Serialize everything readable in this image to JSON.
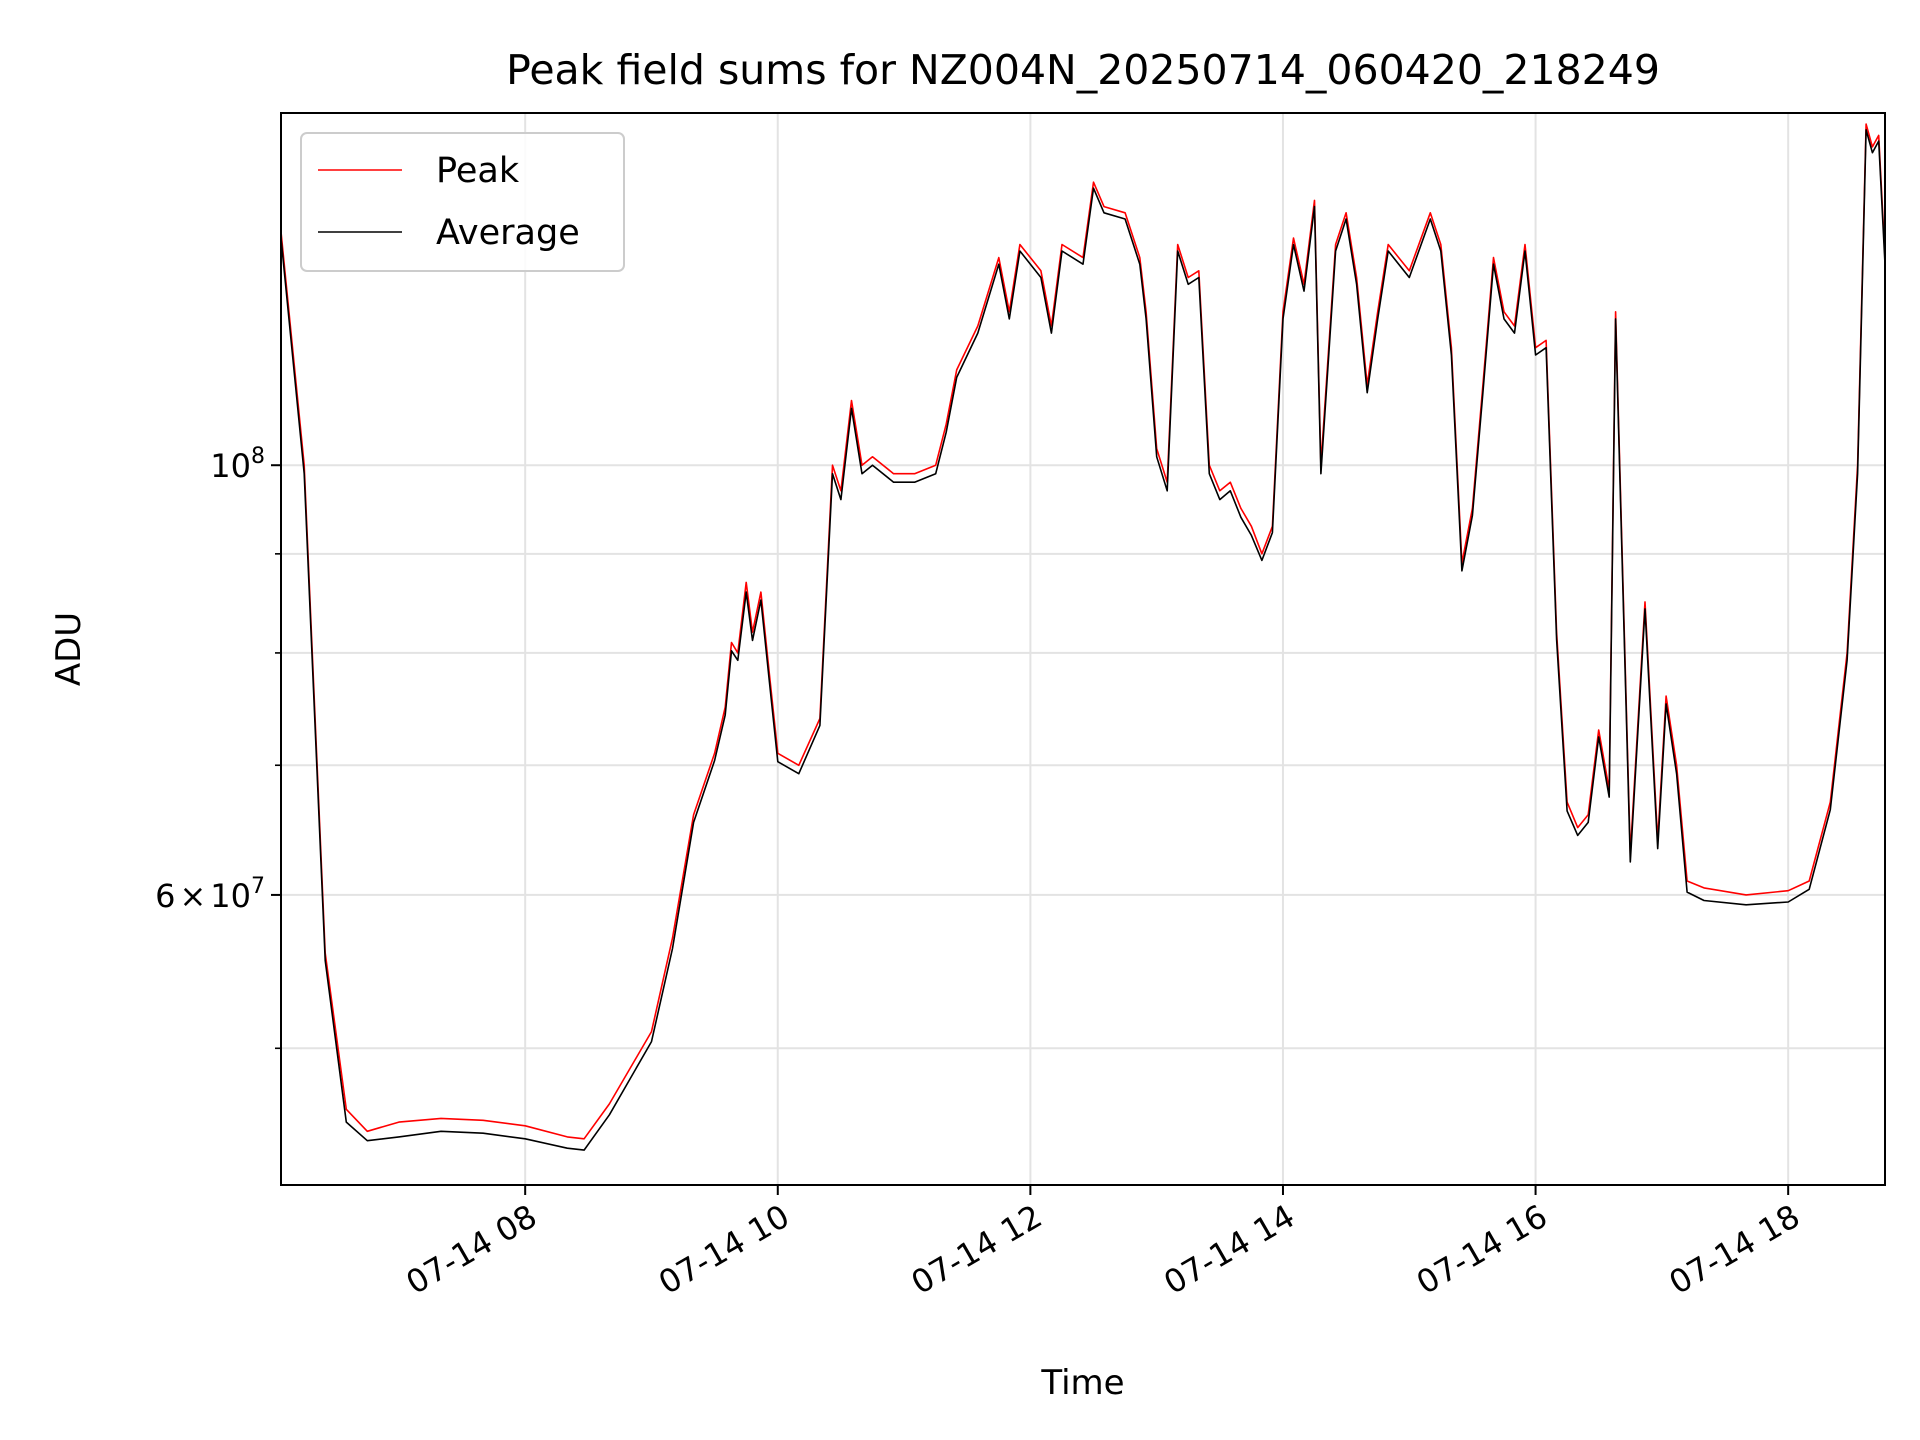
{
  "chart_data": {
    "type": "line",
    "title": "Peak field sums for NZ004N_20250714_060420_218249",
    "xlabel": "Time",
    "ylabel": "ADU",
    "y_scale": "log",
    "ylim": [
      42500000,
      152000000
    ],
    "xlim": [
      "2025-07-14 06:04",
      "2025-07-14 18:46"
    ],
    "grid": true,
    "legend": "upper left",
    "x_ticks": [
      {
        "t": "2025-07-14 08:00",
        "label": "07-14 08"
      },
      {
        "t": "2025-07-14 10:00",
        "label": "07-14 10"
      },
      {
        "t": "2025-07-14 12:00",
        "label": "07-14 12"
      },
      {
        "t": "2025-07-14 14:00",
        "label": "07-14 14"
      },
      {
        "t": "2025-07-14 16:00",
        "label": "07-14 16"
      },
      {
        "t": "2025-07-14 18:00",
        "label": "07-14 18"
      }
    ],
    "y_major_ticks": [
      {
        "value": 100000000,
        "base": "10",
        "exp": "8"
      },
      {
        "value": 60000000,
        "mantissa": "6",
        "base": "10",
        "exp": "7"
      }
    ],
    "y_minor_ticks": [
      50000000,
      70000000,
      80000000,
      90000000
    ],
    "series": [
      {
        "name": "Peak",
        "color": "#ff0000",
        "x": [
          "2025-07-14 06:04",
          "2025-07-14 06:15",
          "2025-07-14 06:25",
          "2025-07-14 06:35",
          "2025-07-14 06:45",
          "2025-07-14 07:00",
          "2025-07-14 07:20",
          "2025-07-14 07:40",
          "2025-07-14 08:00",
          "2025-07-14 08:20",
          "2025-07-14 08:28",
          "2025-07-14 08:40",
          "2025-07-14 09:00",
          "2025-07-14 09:10",
          "2025-07-14 09:20",
          "2025-07-14 09:30",
          "2025-07-14 09:35",
          "2025-07-14 09:38",
          "2025-07-14 09:41",
          "2025-07-14 09:45",
          "2025-07-14 09:48",
          "2025-07-14 09:52",
          "2025-07-14 09:56",
          "2025-07-14 10:00",
          "2025-07-14 10:10",
          "2025-07-14 10:20",
          "2025-07-14 10:26",
          "2025-07-14 10:30",
          "2025-07-14 10:35",
          "2025-07-14 10:40",
          "2025-07-14 10:45",
          "2025-07-14 10:55",
          "2025-07-14 11:05",
          "2025-07-14 11:15",
          "2025-07-14 11:20",
          "2025-07-14 11:25",
          "2025-07-14 11:35",
          "2025-07-14 11:45",
          "2025-07-14 11:50",
          "2025-07-14 11:55",
          "2025-07-14 12:05",
          "2025-07-14 12:10",
          "2025-07-14 12:15",
          "2025-07-14 12:25",
          "2025-07-14 12:30",
          "2025-07-14 12:35",
          "2025-07-14 12:45",
          "2025-07-14 12:52",
          "2025-07-14 12:55",
          "2025-07-14 13:00",
          "2025-07-14 13:05",
          "2025-07-14 13:10",
          "2025-07-14 13:15",
          "2025-07-14 13:20",
          "2025-07-14 13:25",
          "2025-07-14 13:30",
          "2025-07-14 13:35",
          "2025-07-14 13:40",
          "2025-07-14 13:45",
          "2025-07-14 13:50",
          "2025-07-14 13:55",
          "2025-07-14 14:00",
          "2025-07-14 14:05",
          "2025-07-14 14:10",
          "2025-07-14 14:15",
          "2025-07-14 14:18",
          "2025-07-14 14:25",
          "2025-07-14 14:30",
          "2025-07-14 14:35",
          "2025-07-14 14:40",
          "2025-07-14 14:45",
          "2025-07-14 14:50",
          "2025-07-14 15:00",
          "2025-07-14 15:10",
          "2025-07-14 15:15",
          "2025-07-14 15:20",
          "2025-07-14 15:25",
          "2025-07-14 15:30",
          "2025-07-14 15:35",
          "2025-07-14 15:40",
          "2025-07-14 15:45",
          "2025-07-14 15:50",
          "2025-07-14 15:55",
          "2025-07-14 16:00",
          "2025-07-14 16:05",
          "2025-07-14 16:10",
          "2025-07-14 16:15",
          "2025-07-14 16:20",
          "2025-07-14 16:25",
          "2025-07-14 16:30",
          "2025-07-14 16:35",
          "2025-07-14 16:38",
          "2025-07-14 16:45",
          "2025-07-14 16:52",
          "2025-07-14 16:58",
          "2025-07-14 17:02",
          "2025-07-14 17:07",
          "2025-07-14 17:12",
          "2025-07-14 17:20",
          "2025-07-14 17:40",
          "2025-07-14 18:00",
          "2025-07-14 18:10",
          "2025-07-14 18:20",
          "2025-07-14 18:28",
          "2025-07-14 18:33",
          "2025-07-14 18:37",
          "2025-07-14 18:40",
          "2025-07-14 18:43",
          "2025-07-14 18:46"
        ],
        "y": [
          132000000,
          100000000,
          56000000,
          46500000,
          45300000,
          45800000,
          46000000,
          45900000,
          45600000,
          45000000,
          44900000,
          46800000,
          51000000,
          57000000,
          66000000,
          71000000,
          75000000,
          81000000,
          80000000,
          87000000,
          82000000,
          86000000,
          78000000,
          71000000,
          70000000,
          74000000,
          100000000,
          97000000,
          108000000,
          100000000,
          101000000,
          99000000,
          99000000,
          100000000,
          105000000,
          112000000,
          118000000,
          128000000,
          120000000,
          130000000,
          126000000,
          118000000,
          130000000,
          128000000,
          140000000,
          136000000,
          135000000,
          128000000,
          120000000,
          102000000,
          98000000,
          130000000,
          125000000,
          126000000,
          100000000,
          97000000,
          98000000,
          95000000,
          93000000,
          90000000,
          93000000,
          120000000,
          131000000,
          124000000,
          137000000,
          100000000,
          130000000,
          135000000,
          125000000,
          110000000,
          120000000,
          130000000,
          126000000,
          135000000,
          130000000,
          115000000,
          89000000,
          95000000,
          110000000,
          128000000,
          120000000,
          118000000,
          130000000,
          115000000,
          116000000,
          82000000,
          67000000,
          65000000,
          66000000,
          73000000,
          68000000,
          120000000,
          63000000,
          85000000,
          64000000,
          76000000,
          70000000,
          61000000,
          60500000,
          60000000,
          60300000,
          61000000,
          67000000,
          80000000,
          100000000,
          150000000,
          146000000,
          148000000,
          128000000
        ]
      },
      {
        "name": "Average",
        "color": "#000000",
        "x": [
          "2025-07-14 06:04",
          "2025-07-14 06:15",
          "2025-07-14 06:25",
          "2025-07-14 06:35",
          "2025-07-14 06:45",
          "2025-07-14 07:00",
          "2025-07-14 07:20",
          "2025-07-14 07:40",
          "2025-07-14 08:00",
          "2025-07-14 08:20",
          "2025-07-14 08:28",
          "2025-07-14 08:40",
          "2025-07-14 09:00",
          "2025-07-14 09:10",
          "2025-07-14 09:20",
          "2025-07-14 09:30",
          "2025-07-14 09:35",
          "2025-07-14 09:38",
          "2025-07-14 09:41",
          "2025-07-14 09:45",
          "2025-07-14 09:48",
          "2025-07-14 09:52",
          "2025-07-14 09:56",
          "2025-07-14 10:00",
          "2025-07-14 10:10",
          "2025-07-14 10:20",
          "2025-07-14 10:26",
          "2025-07-14 10:30",
          "2025-07-14 10:35",
          "2025-07-14 10:40",
          "2025-07-14 10:45",
          "2025-07-14 10:55",
          "2025-07-14 11:05",
          "2025-07-14 11:15",
          "2025-07-14 11:20",
          "2025-07-14 11:25",
          "2025-07-14 11:35",
          "2025-07-14 11:45",
          "2025-07-14 11:50",
          "2025-07-14 11:55",
          "2025-07-14 12:05",
          "2025-07-14 12:10",
          "2025-07-14 12:15",
          "2025-07-14 12:25",
          "2025-07-14 12:30",
          "2025-07-14 12:35",
          "2025-07-14 12:45",
          "2025-07-14 12:52",
          "2025-07-14 12:55",
          "2025-07-14 13:00",
          "2025-07-14 13:05",
          "2025-07-14 13:10",
          "2025-07-14 13:15",
          "2025-07-14 13:20",
          "2025-07-14 13:25",
          "2025-07-14 13:30",
          "2025-07-14 13:35",
          "2025-07-14 13:40",
          "2025-07-14 13:45",
          "2025-07-14 13:50",
          "2025-07-14 13:55",
          "2025-07-14 14:00",
          "2025-07-14 14:05",
          "2025-07-14 14:10",
          "2025-07-14 14:15",
          "2025-07-14 14:18",
          "2025-07-14 14:25",
          "2025-07-14 14:30",
          "2025-07-14 14:35",
          "2025-07-14 14:40",
          "2025-07-14 14:45",
          "2025-07-14 14:50",
          "2025-07-14 15:00",
          "2025-07-14 15:10",
          "2025-07-14 15:15",
          "2025-07-14 15:20",
          "2025-07-14 15:25",
          "2025-07-14 15:30",
          "2025-07-14 15:35",
          "2025-07-14 15:40",
          "2025-07-14 15:45",
          "2025-07-14 15:50",
          "2025-07-14 15:55",
          "2025-07-14 16:00",
          "2025-07-14 16:05",
          "2025-07-14 16:10",
          "2025-07-14 16:15",
          "2025-07-14 16:20",
          "2025-07-14 16:25",
          "2025-07-14 16:30",
          "2025-07-14 16:35",
          "2025-07-14 16:38",
          "2025-07-14 16:45",
          "2025-07-14 16:52",
          "2025-07-14 16:58",
          "2025-07-14 17:02",
          "2025-07-14 17:07",
          "2025-07-14 17:12",
          "2025-07-14 17:20",
          "2025-07-14 17:40",
          "2025-07-14 18:00",
          "2025-07-14 18:10",
          "2025-07-14 18:20",
          "2025-07-14 18:28",
          "2025-07-14 18:33",
          "2025-07-14 18:37",
          "2025-07-14 18:40",
          "2025-07-14 18:43",
          "2025-07-14 18:46"
        ],
        "y": [
          131000000,
          99000000,
          55500000,
          45800000,
          44800000,
          45000000,
          45300000,
          45200000,
          44900000,
          44400000,
          44300000,
          46200000,
          50400000,
          56300000,
          65400000,
          70400000,
          74300000,
          80200000,
          79300000,
          86000000,
          81200000,
          85200000,
          77300000,
          70300000,
          69300000,
          73400000,
          99000000,
          96000000,
          107000000,
          99000000,
          100000000,
          98000000,
          98000000,
          99000000,
          104000000,
          111000000,
          117000000,
          127000000,
          119000000,
          129000000,
          125000000,
          117000000,
          129000000,
          127000000,
          139000000,
          135000000,
          134000000,
          127000000,
          119000000,
          101000000,
          97000000,
          129000000,
          124000000,
          125000000,
          99000000,
          96000000,
          97000000,
          94000000,
          92000000,
          89300000,
          92300000,
          119000000,
          130000000,
          123000000,
          136000000,
          99000000,
          129000000,
          134000000,
          124000000,
          109000000,
          119000000,
          129000000,
          125000000,
          134000000,
          129000000,
          114000000,
          88200000,
          94200000,
          109000000,
          127000000,
          119000000,
          117000000,
          129000000,
          114000000,
          115000000,
          81300000,
          66300000,
          64400000,
          65400000,
          72400000,
          67400000,
          119000000,
          62400000,
          84300000,
          63400000,
          75300000,
          69300000,
          60200000,
          59600000,
          59300000,
          59500000,
          60400000,
          66400000,
          79300000,
          99000000,
          149000000,
          145000000,
          147000000,
          127000000
        ]
      }
    ]
  }
}
